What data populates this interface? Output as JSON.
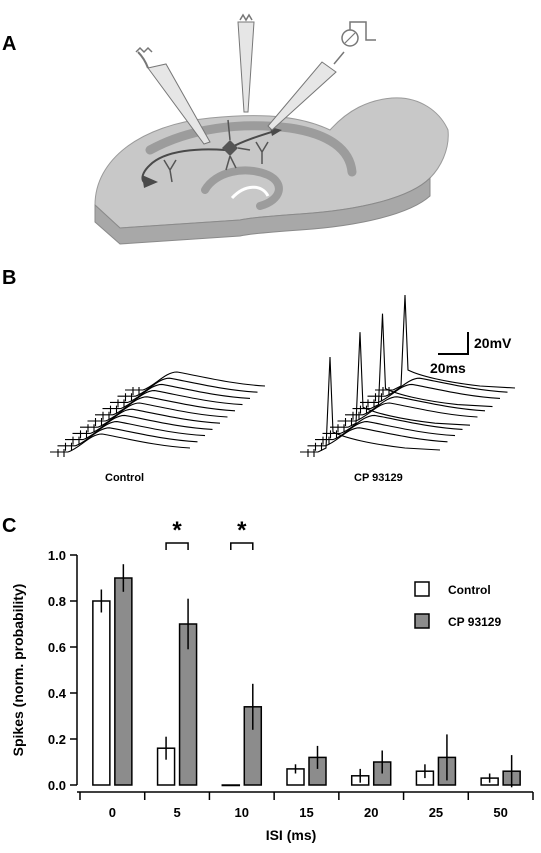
{
  "panels": {
    "a_label": "A",
    "b_label": "B",
    "c_label": "C"
  },
  "panel_b": {
    "control_label": "Control",
    "drug_label": "CP 93129",
    "scale_voltage": "20mV",
    "scale_time": "20ms"
  },
  "colors": {
    "control_fill": "#ffffff",
    "drug_fill": "#8c8c8c",
    "slice_top": "#c8c8c8",
    "slice_side": "#a8a8a8",
    "pathway": "#4a4a4a"
  },
  "chart_data": {
    "type": "bar",
    "xlabel": "ISI (ms)",
    "ylabel": "Spikes (norm. probability)",
    "categories": [
      "0",
      "5",
      "10",
      "15",
      "20",
      "25",
      "50"
    ],
    "ylim": [
      0,
      1.0
    ],
    "yticks": [
      "0.0",
      "0.2",
      "0.4",
      "0.6",
      "0.8",
      "1.0"
    ],
    "legend_position": "top-right",
    "series": [
      {
        "name": "Control",
        "values": [
          0.8,
          0.16,
          0.0,
          0.07,
          0.04,
          0.06,
          0.03
        ],
        "errors": [
          0.05,
          0.05,
          0.0,
          0.02,
          0.03,
          0.03,
          0.02
        ]
      },
      {
        "name": "CP 93129",
        "values": [
          0.9,
          0.7,
          0.34,
          0.12,
          0.1,
          0.12,
          0.06
        ],
        "errors": [
          0.06,
          0.11,
          0.1,
          0.05,
          0.05,
          0.1,
          0.07
        ]
      }
    ],
    "significance": [
      {
        "category": "5",
        "marker": "*"
      },
      {
        "category": "10",
        "marker": "*"
      }
    ]
  }
}
